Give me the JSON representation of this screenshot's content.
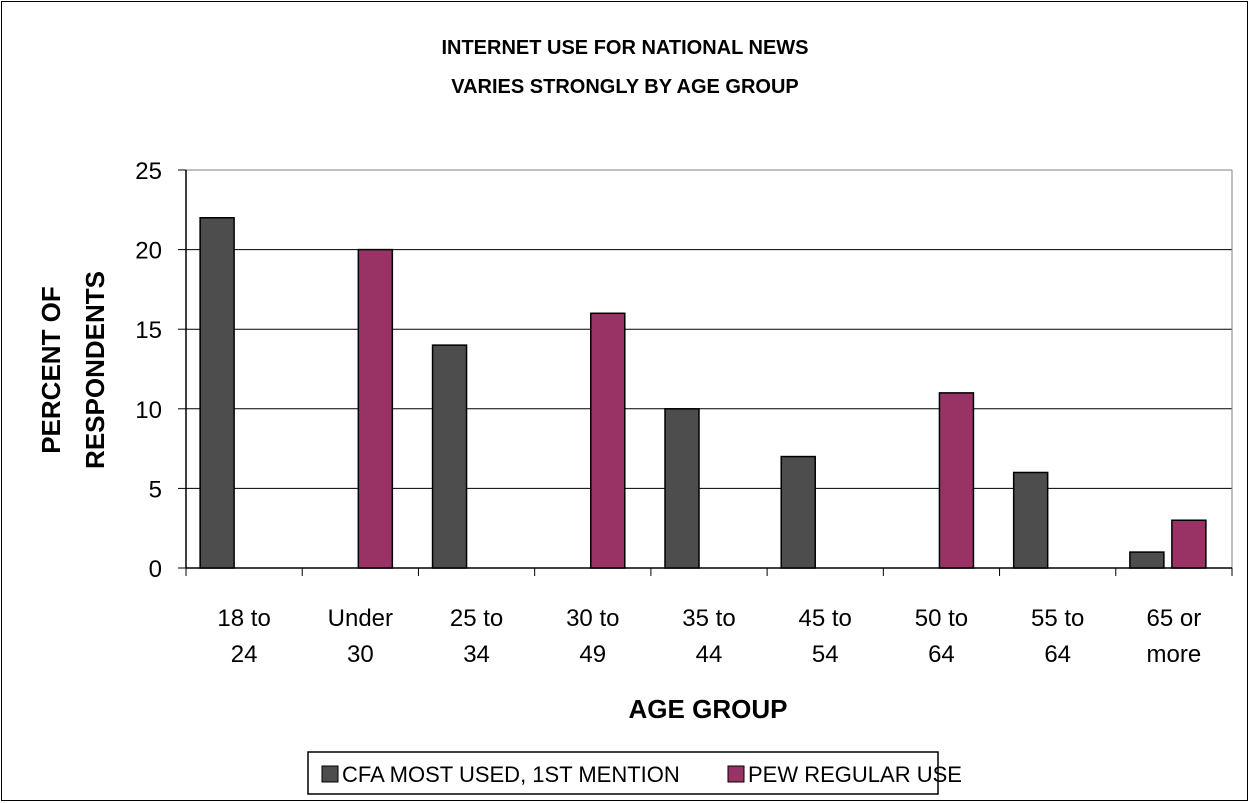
{
  "chart_data": {
    "type": "bar",
    "title": [
      "INTERNET USE FOR NATIONAL NEWS",
      "VARIES STRONGLY BY AGE GROUP"
    ],
    "xlabel": "AGE GROUP",
    "ylabel": [
      "PERCENT OF",
      "RESPONDENTS"
    ],
    "categories": [
      [
        "18 to",
        "24"
      ],
      [
        "Under",
        "30"
      ],
      [
        "25 to",
        "34"
      ],
      [
        "30 to",
        "49"
      ],
      [
        "35 to",
        "44"
      ],
      [
        "45 to",
        "54"
      ],
      [
        "50 to",
        "64"
      ],
      [
        "55 to",
        "64"
      ],
      [
        "65 or",
        "more"
      ]
    ],
    "series": [
      {
        "name": "CFA MOST USED, 1ST MENTION",
        "color": "#4d4d4d",
        "values": [
          22,
          null,
          14,
          null,
          10,
          7,
          null,
          6,
          1
        ]
      },
      {
        "name": "PEW REGULAR USE",
        "color": "#993366",
        "values": [
          null,
          20,
          null,
          16,
          null,
          null,
          11,
          null,
          3
        ]
      }
    ],
    "ylim": [
      0,
      25
    ],
    "yticks": [
      0,
      5,
      10,
      15,
      20,
      25
    ],
    "grid": true,
    "legend": "bottom"
  }
}
